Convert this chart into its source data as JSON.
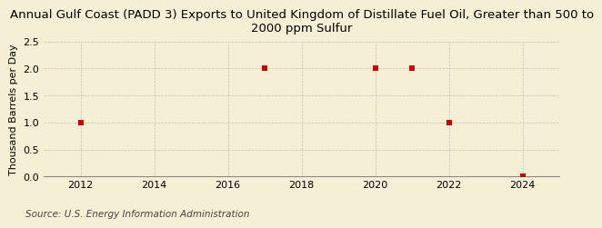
{
  "title": "Annual Gulf Coast (PADD 3) Exports to United Kingdom of Distillate Fuel Oil, Greater than 500 to\n2000 ppm Sulfur",
  "ylabel": "Thousand Barrels per Day",
  "source": "Source: U.S. Energy Information Administration",
  "x_data": [
    2012,
    2017,
    2020,
    2021,
    2022,
    2024
  ],
  "y_data": [
    1.0,
    2.0,
    2.0,
    2.0,
    1.0,
    0.0
  ],
  "xlim": [
    2011,
    2025
  ],
  "ylim": [
    0.0,
    2.5
  ],
  "yticks": [
    0.0,
    0.5,
    1.0,
    1.5,
    2.0,
    2.5
  ],
  "xticks": [
    2012,
    2014,
    2016,
    2018,
    2020,
    2022,
    2024
  ],
  "marker_color": "#cc0000",
  "marker": "s",
  "marker_size": 4,
  "bg_color": "#f5efd5",
  "plot_bg_color": "#f5efd5",
  "grid_color": "#aaaaaa",
  "title_fontsize": 9.5,
  "axis_label_fontsize": 8,
  "tick_fontsize": 8,
  "source_fontsize": 7.5
}
